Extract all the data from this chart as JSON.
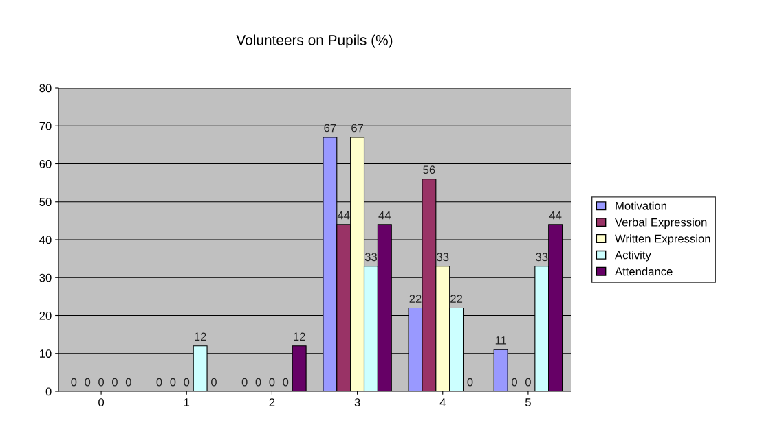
{
  "chart_data": {
    "type": "bar",
    "title": "Volunteers on Pupils (%)",
    "categories": [
      "0",
      "1",
      "2",
      "3",
      "4",
      "5"
    ],
    "series": [
      {
        "name": "Motivation",
        "color": "#9999ff",
        "values": [
          0,
          0,
          0,
          67,
          22,
          11
        ]
      },
      {
        "name": "Verbal Expression",
        "color": "#993366",
        "values": [
          0,
          0,
          0,
          44,
          56,
          0
        ]
      },
      {
        "name": "Written Expression",
        "color": "#ffffcc",
        "values": [
          0,
          0,
          0,
          67,
          33,
          0
        ]
      },
      {
        "name": "Activity",
        "color": "#ccffff",
        "values": [
          0,
          12,
          0,
          33,
          22,
          33
        ]
      },
      {
        "name": "Attendance",
        "color": "#660066",
        "values": [
          0,
          0,
          12,
          44,
          0,
          44
        ]
      }
    ],
    "ylim": [
      0,
      80
    ],
    "yticks": [
      0,
      10,
      20,
      30,
      40,
      50,
      60,
      70,
      80
    ],
    "grid": "y",
    "legend": "right",
    "data_labels": true
  }
}
